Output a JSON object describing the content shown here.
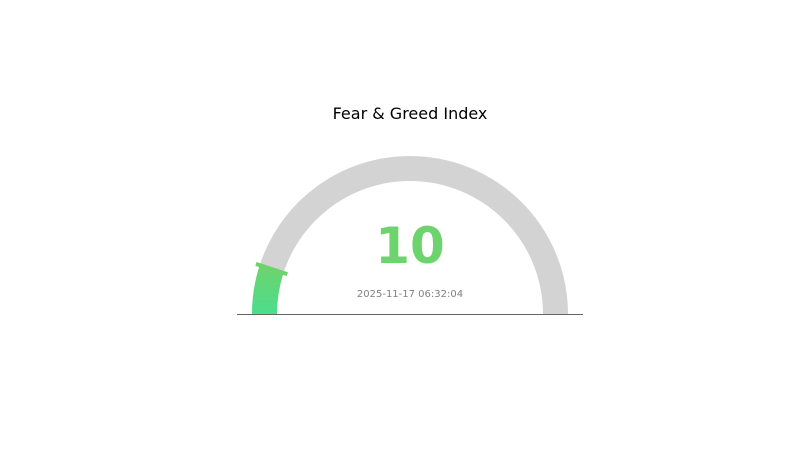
{
  "chart_data": {
    "type": "gauge",
    "title": "Fear & Greed Index",
    "value": 10,
    "value_label": "10",
    "range": [
      0,
      100
    ],
    "timestamp": "2025-11-17 06:32:04",
    "colors": {
      "track": "#d3d3d3",
      "fill_start": "#4cdd8c",
      "fill_end": "#6dd36c",
      "value_text": "#6dd36c",
      "timestamp_text": "#808080",
      "baseline": "#666666"
    }
  }
}
